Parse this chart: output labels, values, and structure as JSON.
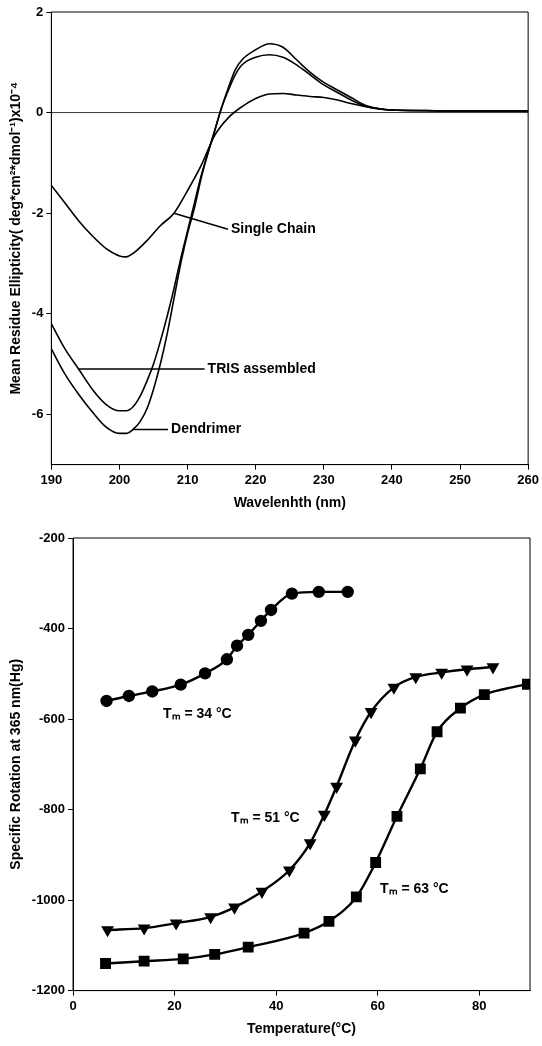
{
  "chart_data": [
    {
      "type": "line",
      "xlabel": "Wavelenhth (nm)",
      "ylabel": "Mean Residue Ellipticity( deg*cm²*dmol⁻¹)x10⁻⁴",
      "xlim": [
        190,
        260
      ],
      "xticks": [
        190,
        200,
        210,
        220,
        230,
        240,
        250,
        260
      ],
      "ylim": [
        -7,
        2
      ],
      "yticks": [
        -6,
        -4,
        -2,
        0,
        2
      ],
      "grid": false,
      "legend": false,
      "marker": "none",
      "line_style": "solid",
      "ref_lines": [
        {
          "axis": "y",
          "value": 0,
          "color": "#000000"
        }
      ],
      "annotations": [
        {
          "text": "Single Chain",
          "x": 208,
          "y": -2.0
        },
        {
          "text": "TRIS assembled",
          "x": 194,
          "y": -5.1
        },
        {
          "text": "Dendrimer",
          "x": 202,
          "y": -6.3
        }
      ],
      "series": [
        {
          "color": "#000000",
          "x": [
            190,
            192,
            194,
            196,
            198,
            200,
            201,
            202,
            204,
            206,
            208,
            210,
            212,
            214,
            216,
            218,
            220,
            222,
            224,
            226,
            228,
            230,
            232,
            234,
            236,
            238,
            240,
            250,
            260
          ],
          "values": [
            -1.45,
            -1.8,
            -2.15,
            -2.45,
            -2.7,
            -2.85,
            -2.87,
            -2.8,
            -2.55,
            -2.25,
            -2.0,
            -1.55,
            -1.05,
            -0.45,
            -0.1,
            0.12,
            0.28,
            0.37,
            0.38,
            0.35,
            0.32,
            0.3,
            0.25,
            0.18,
            0.12,
            0.08,
            0.05,
            0.03,
            0.03
          ]
        },
        {
          "color": "#000000",
          "x": [
            190,
            192,
            194,
            196,
            198,
            200,
            201,
            202,
            203,
            204,
            205,
            206,
            207,
            208,
            209,
            210,
            211,
            212,
            213,
            214,
            215,
            216,
            217,
            218,
            220,
            222,
            224,
            226,
            228,
            230,
            232,
            234,
            236,
            238,
            240,
            245,
            250,
            255,
            260
          ],
          "values": [
            -4.2,
            -4.7,
            -5.1,
            -5.5,
            -5.8,
            -5.93,
            -5.93,
            -5.85,
            -5.65,
            -5.35,
            -5.0,
            -4.55,
            -4.05,
            -3.5,
            -2.9,
            -2.35,
            -1.8,
            -1.25,
            -0.8,
            -0.35,
            0.1,
            0.45,
            0.75,
            0.95,
            1.1,
            1.15,
            1.1,
            0.95,
            0.75,
            0.55,
            0.4,
            0.25,
            0.13,
            0.07,
            0.05,
            0.04,
            0.03,
            0.03,
            0.03
          ]
        },
        {
          "color": "#000000",
          "x": [
            190,
            192,
            194,
            196,
            198,
            200,
            201,
            202,
            203,
            204,
            205,
            206,
            207,
            208,
            209,
            210,
            211,
            212,
            213,
            214,
            215,
            216,
            217,
            218,
            220,
            222,
            224,
            226,
            228,
            230,
            232,
            234,
            236,
            238,
            240,
            245,
            250,
            255,
            260
          ],
          "values": [
            -4.7,
            -5.2,
            -5.6,
            -5.95,
            -6.25,
            -6.38,
            -6.38,
            -6.3,
            -6.15,
            -5.9,
            -5.5,
            -5.0,
            -4.4,
            -3.7,
            -3.0,
            -2.4,
            -1.9,
            -1.3,
            -0.8,
            -0.35,
            0.1,
            0.5,
            0.85,
            1.05,
            1.25,
            1.37,
            1.3,
            1.05,
            0.8,
            0.6,
            0.45,
            0.3,
            0.15,
            0.08,
            0.05,
            0.04,
            0.03,
            0.03,
            0.03
          ]
        }
      ]
    },
    {
      "type": "line",
      "xlabel": "Temperature(°C)",
      "ylabel": "Specific Rotation at 365 nm(Hg)",
      "xlim": [
        0,
        90
      ],
      "xticks": [
        0,
        20,
        40,
        60,
        80
      ],
      "ylim": [
        -1200,
        -200
      ],
      "yticks": [
        -1200,
        -1000,
        -800,
        -600,
        -400,
        -200
      ],
      "grid": false,
      "legend": false,
      "line_style": "solid",
      "annotations": [
        "Tₘ = 34 °C",
        "Tₘ = 51 °C",
        "Tₘ = 63 °C"
      ],
      "series": [
        {
          "color": "#000000",
          "marker": "circle",
          "x": [
            6.6,
            11.0,
            15.6,
            21.2,
            26.0,
            30.3,
            32.3,
            34.5,
            37.0,
            39.0,
            43.1,
            48.4,
            54.1
          ],
          "values": [
            -560,
            -549,
            -539,
            -524,
            -499,
            -468,
            -438,
            -414,
            -383,
            -359,
            -323,
            -319,
            -319
          ]
        },
        {
          "color": "#000000",
          "marker": "triangle",
          "x": [
            6.8,
            14.0,
            20.3,
            27.1,
            31.8,
            37.2,
            42.6,
            46.7,
            49.5,
            51.9,
            55.6,
            58.7,
            63.2,
            67.5,
            72.6,
            77.6,
            82.7
          ],
          "values": [
            -1066,
            -1062,
            -1051,
            -1037,
            -1016,
            -981,
            -934,
            -874,
            -811,
            -749,
            -647,
            -584,
            -530,
            -507,
            -497,
            -490,
            -485
          ]
        },
        {
          "color": "#000000",
          "marker": "square",
          "x": [
            6.4,
            14.0,
            21.7,
            27.9,
            34.5,
            45.5,
            50.4,
            55.8,
            59.6,
            63.8,
            68.4,
            71.7,
            76.3,
            81.0,
            89.5
          ],
          "values": [
            -1140,
            -1135,
            -1130,
            -1120,
            -1104,
            -1073,
            -1047,
            -993,
            -917,
            -815,
            -710,
            -628,
            -576,
            -546,
            -523
          ]
        }
      ]
    }
  ]
}
